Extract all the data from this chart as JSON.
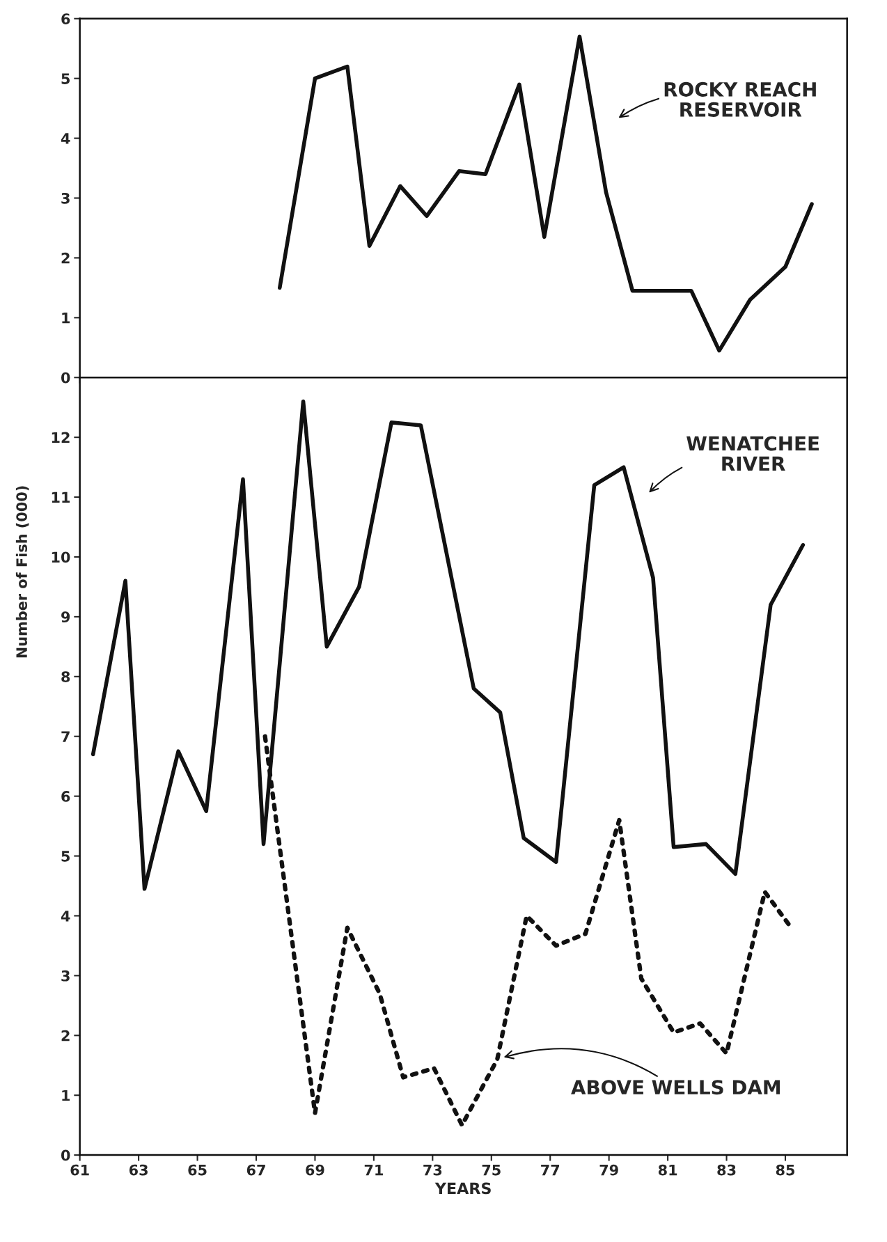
{
  "chart_data": [
    {
      "type": "line",
      "xlim": [
        61,
        87.1
      ],
      "xticks": [
        61,
        63,
        65,
        67,
        69,
        71,
        73,
        75,
        77,
        79,
        81,
        83,
        85
      ],
      "ylim": [
        0,
        6
      ],
      "yticks": [
        0,
        1,
        2,
        3,
        4,
        5,
        6
      ],
      "tick_labels": "y",
      "grid": false,
      "marker": "none",
      "series": [
        {
          "color": "#111111",
          "line_style": "solid",
          "x": [
            67.8,
            69.0,
            70.1,
            70.85,
            71.9,
            72.8,
            73.9,
            74.8,
            75.95,
            76.8,
            78.0,
            78.9,
            79.8,
            81.8,
            82.75,
            83.8,
            85.0,
            85.9
          ],
          "values": [
            1.5,
            5.0,
            5.2,
            2.2,
            3.2,
            2.7,
            3.45,
            3.4,
            4.9,
            2.35,
            5.7,
            3.1,
            1.45,
            1.45,
            0.45,
            1.3,
            1.85,
            2.9
          ]
        }
      ],
      "annotations": [
        "ROCKY REACH\nRESERVOIR"
      ]
    },
    {
      "type": "line",
      "xlim": [
        61,
        87.1
      ],
      "xticks": [
        61,
        63,
        65,
        67,
        69,
        71,
        73,
        75,
        77,
        79,
        81,
        83,
        85
      ],
      "ylim": [
        0,
        13
      ],
      "yticks": [
        0,
        1,
        2,
        3,
        4,
        5,
        6,
        7,
        8,
        9,
        10,
        11,
        12
      ],
      "xlabel": "YEARS",
      "ylabel": "Number of Fish (000)",
      "grid": false,
      "marker": "none",
      "series": [
        {
          "color": "#111111",
          "line_style": "solid",
          "x": [
            61.45,
            62.55,
            63.2,
            64.35,
            65.3,
            66.55,
            67.25,
            68.6,
            69.4,
            70.5,
            71.6,
            72.6,
            74.4,
            75.3,
            76.1,
            77.2,
            78.5,
            79.5,
            80.5,
            81.2,
            82.3,
            83.3,
            84.5,
            85.6
          ],
          "values": [
            6.7,
            9.6,
            4.45,
            6.75,
            5.75,
            11.3,
            5.2,
            12.6,
            8.5,
            9.5,
            12.25,
            12.2,
            7.8,
            7.4,
            5.3,
            4.9,
            11.2,
            11.5,
            9.65,
            5.15,
            5.2,
            4.7,
            9.2,
            10.2
          ]
        },
        {
          "color": "#111111",
          "line_style": "dotted",
          "x": [
            67.3,
            69.0,
            70.1,
            71.2,
            72.0,
            73.05,
            74.0,
            75.2,
            76.2,
            77.2,
            78.2,
            79.35,
            80.1,
            81.2,
            82.1,
            83.0,
            84.3,
            85.2
          ],
          "values": [
            7.0,
            0.7,
            3.8,
            2.7,
            1.3,
            1.45,
            0.5,
            1.6,
            4.0,
            3.5,
            3.7,
            5.6,
            2.95,
            2.05,
            2.2,
            1.7,
            4.4,
            3.8
          ]
        }
      ],
      "annotations": [
        "WENATCHEE\nRIVER",
        "ABOVE WELLS DAM"
      ]
    }
  ]
}
